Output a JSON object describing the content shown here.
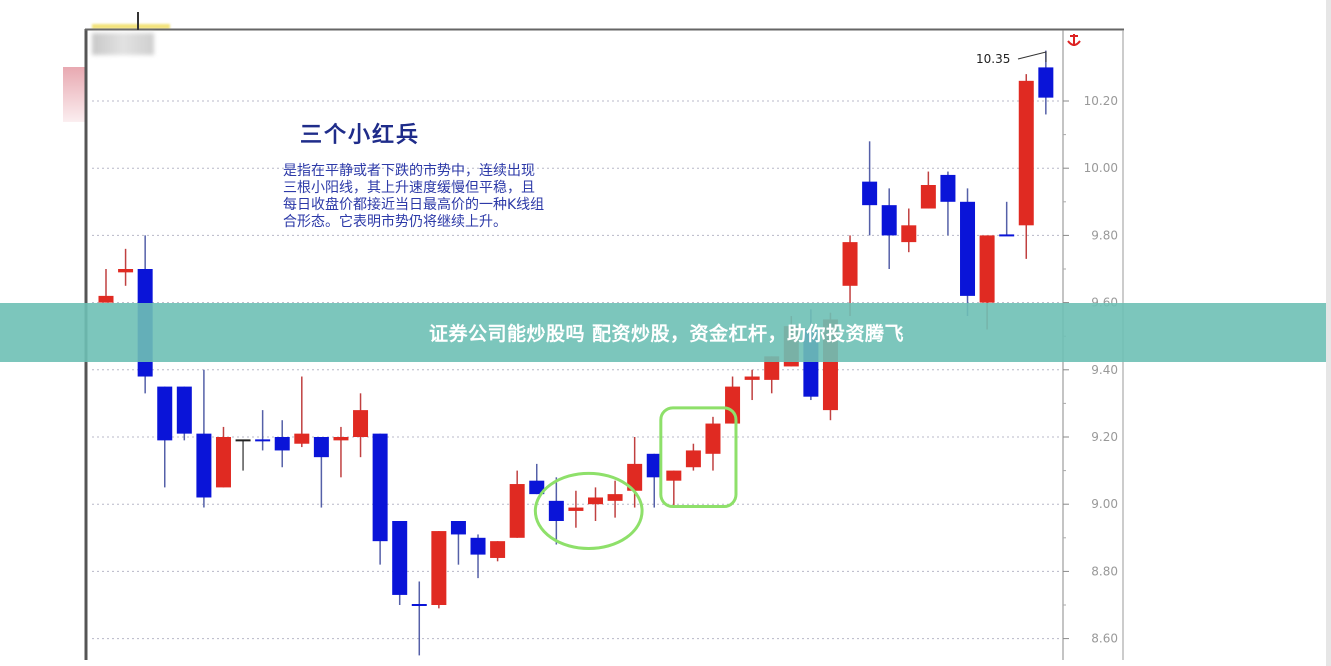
{
  "chart_data": {
    "type": "candlestick",
    "title": "三个小红兵",
    "description_lines": [
      "是指在平静或者下跌的市势中，连续出现",
      "三根小阳线，其上升速度缓慢但平稳，且",
      "每日收盘价都接近当日最高价的一种K线组",
      "合形态。它表明市势仍将继续上升。"
    ],
    "y_ticks": [
      "10.20",
      "10.00",
      "9.80",
      "9.60",
      "9.40",
      "9.20",
      "9.00",
      "8.80",
      "8.60"
    ],
    "ylim": [
      8.57,
      10.42
    ],
    "grid": "horizontal-dotted",
    "colors": {
      "up": "#e02a22",
      "down": "#0a14d8",
      "highlight": "#8ee06a"
    },
    "annotation_high": "10.35",
    "candles": [
      {
        "o": 9.6,
        "c": 9.62,
        "h": 9.7,
        "l": 9.6
      },
      {
        "o": 9.69,
        "c": 9.7,
        "h": 9.76,
        "l": 9.65
      },
      {
        "o": 9.7,
        "c": 9.38,
        "h": 9.8,
        "l": 9.33
      },
      {
        "o": 9.35,
        "c": 9.19,
        "h": 9.35,
        "l": 9.05
      },
      {
        "o": 9.35,
        "c": 9.21,
        "h": 9.35,
        "l": 9.19
      },
      {
        "o": 9.21,
        "c": 9.02,
        "h": 9.4,
        "l": 8.99
      },
      {
        "o": 9.05,
        "c": 9.2,
        "h": 9.23,
        "l": 9.05
      },
      {
        "o": 9.19,
        "c": 9.19,
        "h": 9.19,
        "l": 9.1,
        "dir": "flat"
      },
      {
        "o": 9.19,
        "c": 9.19,
        "h": 9.28,
        "l": 9.16,
        "dir": "down"
      },
      {
        "o": 9.2,
        "c": 9.16,
        "h": 9.25,
        "l": 9.11
      },
      {
        "o": 9.18,
        "c": 9.21,
        "h": 9.38,
        "l": 9.17
      },
      {
        "o": 9.2,
        "c": 9.14,
        "h": 9.2,
        "l": 8.99
      },
      {
        "o": 9.19,
        "c": 9.2,
        "h": 9.23,
        "l": 9.08
      },
      {
        "o": 9.2,
        "c": 9.28,
        "h": 9.33,
        "l": 9.14
      },
      {
        "o": 9.21,
        "c": 8.89,
        "h": 9.21,
        "l": 8.82
      },
      {
        "o": 8.95,
        "c": 8.73,
        "h": 8.95,
        "l": 8.7
      },
      {
        "o": 8.7,
        "c": 8.7,
        "h": 8.77,
        "l": 8.55,
        "dir": "down"
      },
      {
        "o": 8.7,
        "c": 8.92,
        "h": 8.92,
        "l": 8.69
      },
      {
        "o": 8.95,
        "c": 8.91,
        "h": 8.95,
        "l": 8.82
      },
      {
        "o": 8.9,
        "c": 8.85,
        "h": 8.91,
        "l": 8.78
      },
      {
        "o": 8.84,
        "c": 8.89,
        "h": 8.89,
        "l": 8.83
      },
      {
        "o": 8.9,
        "c": 9.06,
        "h": 9.1,
        "l": 8.9
      },
      {
        "o": 9.07,
        "c": 9.03,
        "h": 9.12,
        "l": 9.03
      },
      {
        "o": 9.01,
        "c": 8.95,
        "h": 9.08,
        "l": 8.88
      },
      {
        "o": 8.98,
        "c": 8.99,
        "h": 9.04,
        "l": 8.93
      },
      {
        "o": 9.0,
        "c": 9.02,
        "h": 9.05,
        "l": 8.95
      },
      {
        "o": 9.01,
        "c": 9.03,
        "h": 9.07,
        "l": 8.96
      },
      {
        "o": 9.04,
        "c": 9.12,
        "h": 9.2,
        "l": 8.99
      },
      {
        "o": 9.15,
        "c": 9.08,
        "h": 9.15,
        "l": 8.99
      },
      {
        "o": 9.07,
        "c": 9.1,
        "h": 9.1,
        "l": 8.99
      },
      {
        "o": 9.11,
        "c": 9.16,
        "h": 9.18,
        "l": 9.1
      },
      {
        "o": 9.15,
        "c": 9.24,
        "h": 9.26,
        "l": 9.1
      },
      {
        "o": 9.24,
        "c": 9.35,
        "h": 9.38,
        "l": 9.24
      },
      {
        "o": 9.37,
        "c": 9.38,
        "h": 9.4,
        "l": 9.31
      },
      {
        "o": 9.37,
        "c": 9.44,
        "h": 9.44,
        "l": 9.33
      },
      {
        "o": 9.41,
        "c": 9.53,
        "h": 9.56,
        "l": 9.41
      },
      {
        "o": 9.52,
        "c": 9.32,
        "h": 9.58,
        "l": 9.31
      },
      {
        "o": 9.28,
        "c": 9.55,
        "h": 9.57,
        "l": 9.25
      },
      {
        "o": 9.65,
        "c": 9.78,
        "h": 9.8,
        "l": 9.56
      },
      {
        "o": 9.96,
        "c": 9.89,
        "h": 10.08,
        "l": 9.8
      },
      {
        "o": 9.89,
        "c": 9.8,
        "h": 9.94,
        "l": 9.7
      },
      {
        "o": 9.78,
        "c": 9.83,
        "h": 9.88,
        "l": 9.75
      },
      {
        "o": 9.88,
        "c": 9.95,
        "h": 9.99,
        "l": 9.88
      },
      {
        "o": 9.98,
        "c": 9.9,
        "h": 9.99,
        "l": 9.8
      },
      {
        "o": 9.9,
        "c": 9.62,
        "h": 9.94,
        "l": 9.56
      },
      {
        "o": 9.6,
        "c": 9.8,
        "h": 9.8,
        "l": 9.52
      },
      {
        "o": 9.8,
        "c": 9.8,
        "h": 9.9,
        "l": 9.8,
        "dir": "down"
      },
      {
        "o": 9.83,
        "c": 10.26,
        "h": 10.28,
        "l": 9.73
      },
      {
        "o": 10.3,
        "c": 10.21,
        "h": 10.35,
        "l": 10.16
      }
    ],
    "highlights": [
      {
        "shape": "ellipse",
        "from_candle": 24,
        "to_candle": 27
      },
      {
        "shape": "rounded-rect",
        "from_candle": 30,
        "to_candle": 32
      }
    ]
  },
  "banner": {
    "text": "证券公司能炒股吗 配资炒股，资金杠杆，助你投资腾飞"
  },
  "icons": {
    "anchor": "anchor-icon"
  }
}
